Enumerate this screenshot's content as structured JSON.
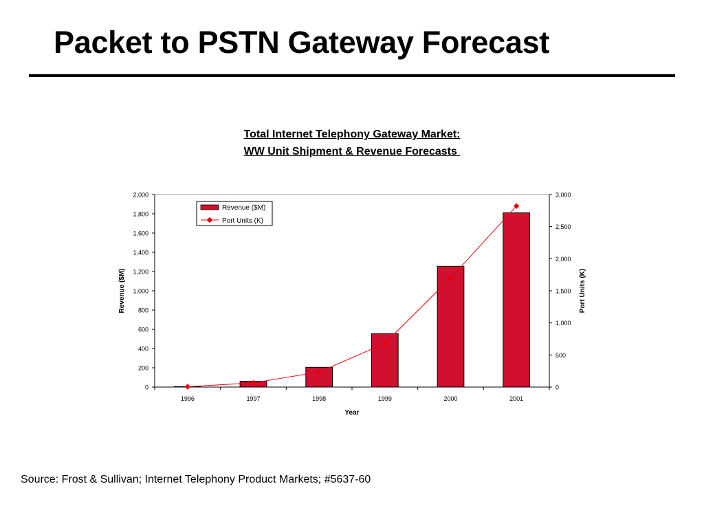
{
  "slide": {
    "title": "Packet to PSTN Gateway Forecast",
    "source": "Source: Frost & Sullivan; Internet Telephony Product Markets; #5637-60"
  },
  "chart_data": {
    "type": "bar",
    "title_line1": "Total Internet Telephony Gateway Market:",
    "title_line2": "WW Unit Shipment & Revenue Forecasts ",
    "xlabel": "Year",
    "ylabel": "Revenue ($M)",
    "y2label": "Port Units (K)",
    "categories": [
      "1996",
      "1997",
      "1998",
      "1999",
      "2000",
      "2001"
    ],
    "ylim": [
      0,
      2000
    ],
    "y2lim": [
      0,
      3000
    ],
    "yticks": [
      "0",
      "200",
      "400",
      "600",
      "800",
      "1,000",
      "1,200",
      "1,400",
      "1,600",
      "1,800",
      "2,000"
    ],
    "y2ticks": [
      "0",
      "500",
      "1,000",
      "1,500",
      "2,000",
      "2,500",
      "3,000"
    ],
    "grid": false,
    "legend_position": "top-left",
    "series": [
      {
        "name": "Revenue ($M)",
        "type": "bar",
        "axis": "left",
        "color": "#d0102e",
        "values": [
          5,
          60,
          205,
          555,
          1255,
          1810
        ]
      },
      {
        "name": "Port Units (K)",
        "type": "line",
        "axis": "right",
        "color": "#e8000b",
        "values": [
          5,
          65,
          235,
          680,
          1700,
          2820
        ]
      }
    ]
  }
}
